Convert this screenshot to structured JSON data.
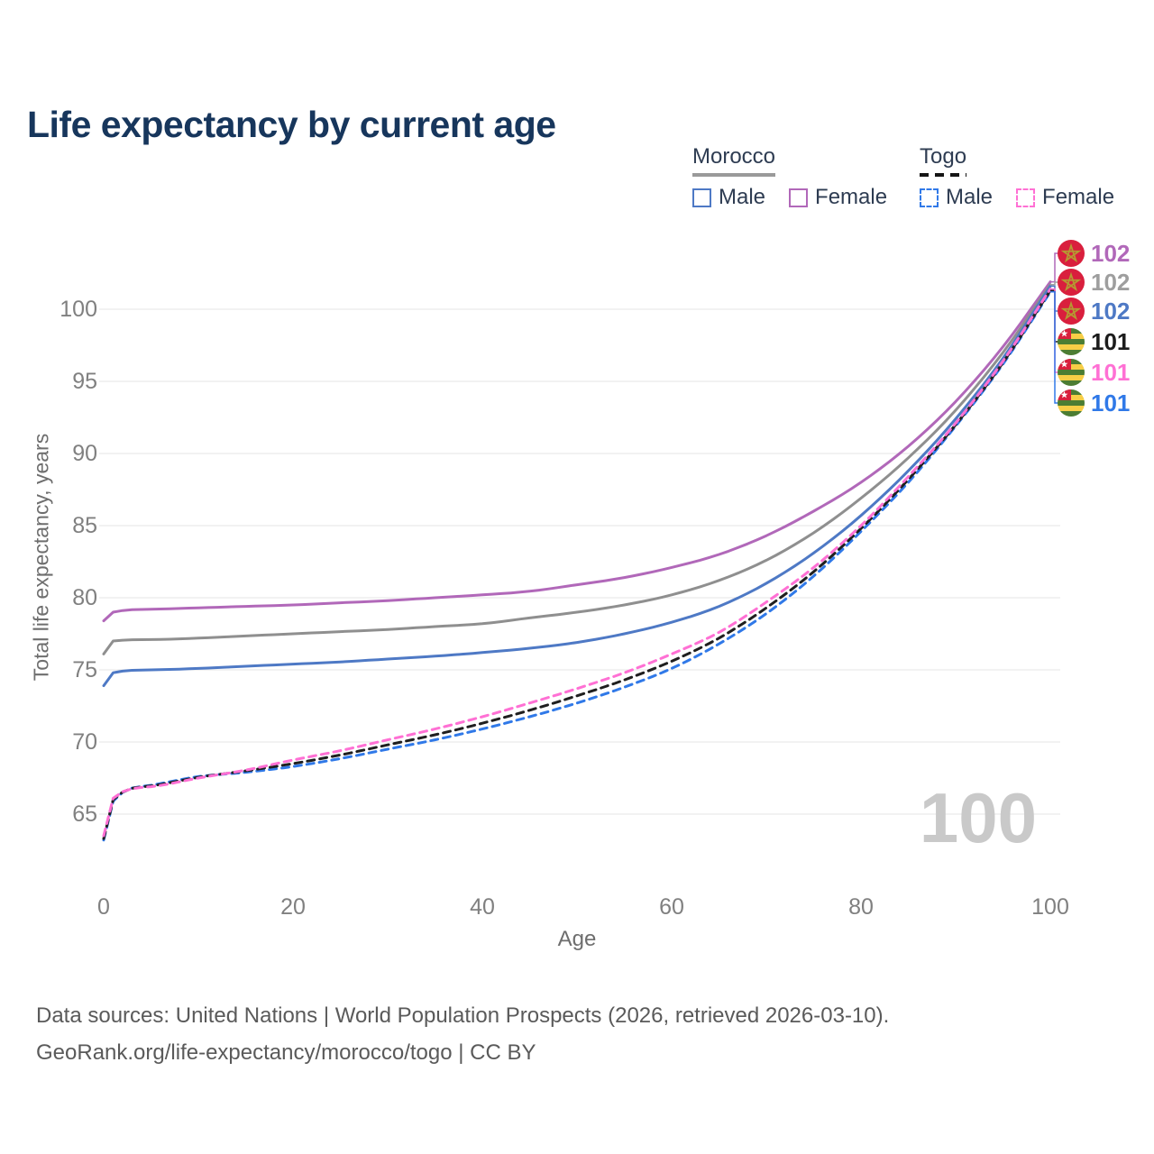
{
  "title": "Life expectancy by current age",
  "watermark": "100",
  "y_axis": {
    "label": "Total life expectancy, years",
    "ticks": [
      65,
      70,
      75,
      80,
      85,
      90,
      95,
      100
    ]
  },
  "x_axis": {
    "label": "Age",
    "ticks": [
      0,
      20,
      40,
      60,
      80,
      100
    ]
  },
  "legend": {
    "groups": [
      {
        "name": "Morocco",
        "line_style": "solid",
        "underline_color": "#9a9a9a",
        "items": [
          {
            "label": "Male",
            "color": "#4e79c5"
          },
          {
            "label": "Female",
            "color": "#b168b9"
          }
        ]
      },
      {
        "name": "Togo",
        "line_style": "dashed",
        "underline_color": "#151515",
        "items": [
          {
            "label": "Male",
            "color": "#3079e8"
          },
          {
            "label": "Female",
            "color": "#ff70d4"
          }
        ]
      }
    ]
  },
  "end_labels": [
    {
      "text": "102",
      "color": "#b168b9",
      "flag": "morocco",
      "series": "morocco_female"
    },
    {
      "text": "102",
      "color": "#9e9e9e",
      "flag": "morocco",
      "series": "morocco_both"
    },
    {
      "text": "102",
      "color": "#4e79c5",
      "flag": "morocco",
      "series": "morocco_male"
    },
    {
      "text": "101",
      "color": "#1c1c1c",
      "flag": "togo",
      "series": "togo_both"
    },
    {
      "text": "101",
      "color": "#ff70d4",
      "flag": "togo",
      "series": "togo_female"
    },
    {
      "text": "101",
      "color": "#3079e8",
      "flag": "togo",
      "series": "togo_male"
    }
  ],
  "footer": {
    "line1": "Data sources: United Nations | World Population Prospects (2026, retrieved 2026-03-10).",
    "line2": "GeoRank.org/life-expectancy/morocco/togo | CC BY"
  },
  "chart_data": {
    "type": "line",
    "title": "Life expectancy by current age",
    "xlabel": "Age",
    "ylabel": "Total life expectancy, years",
    "xlim": [
      0,
      100
    ],
    "ylim": [
      62,
      103.5
    ],
    "grid": "horizontal",
    "legend_position": "top-right",
    "x": [
      0,
      1,
      5,
      10,
      15,
      20,
      25,
      30,
      35,
      40,
      45,
      50,
      55,
      60,
      65,
      70,
      75,
      80,
      85,
      90,
      95,
      100
    ],
    "series": [
      {
        "id": "morocco_female",
        "name": "Morocco Female",
        "color": "#b168b9",
        "dash": false,
        "values": [
          78.4,
          79.0,
          79.2,
          79.3,
          79.4,
          79.5,
          79.65,
          79.8,
          80.0,
          80.2,
          80.45,
          80.9,
          81.4,
          82.1,
          83.0,
          84.3,
          86.0,
          88.0,
          90.5,
          93.6,
          97.4,
          101.9
        ]
      },
      {
        "id": "morocco_both",
        "name": "Morocco Both sexes",
        "color": "#8f8f8f",
        "dash": false,
        "values": [
          76.1,
          77.0,
          77.1,
          77.2,
          77.35,
          77.5,
          77.65,
          77.8,
          78.0,
          78.2,
          78.6,
          79.0,
          79.5,
          80.2,
          81.2,
          82.6,
          84.5,
          86.9,
          89.7,
          93.0,
          97.0,
          101.7
        ]
      },
      {
        "id": "morocco_male",
        "name": "Morocco Male",
        "color": "#4e79c5",
        "dash": false,
        "values": [
          73.9,
          74.8,
          75.0,
          75.1,
          75.25,
          75.4,
          75.55,
          75.75,
          75.95,
          76.2,
          76.5,
          76.9,
          77.5,
          78.3,
          79.4,
          81.0,
          83.1,
          85.7,
          88.8,
          92.4,
          96.6,
          101.6
        ]
      },
      {
        "id": "togo_male",
        "name": "Togo Male",
        "color": "#3079e8",
        "dash": true,
        "values": [
          63.2,
          65.9,
          67.0,
          67.6,
          67.9,
          68.3,
          68.85,
          69.5,
          70.15,
          70.9,
          71.75,
          72.7,
          73.8,
          75.1,
          76.8,
          78.9,
          81.5,
          84.6,
          88.0,
          91.9,
          96.2,
          101.2
        ]
      },
      {
        "id": "togo_both",
        "name": "Togo Both sexes",
        "color": "#1f1f1f",
        "dash": true,
        "values": [
          63.3,
          66.0,
          66.95,
          67.55,
          68.0,
          68.5,
          69.1,
          69.8,
          70.5,
          71.3,
          72.2,
          73.2,
          74.3,
          75.6,
          77.2,
          79.3,
          81.8,
          84.8,
          88.2,
          92.0,
          96.3,
          101.3
        ]
      },
      {
        "id": "togo_female",
        "name": "Togo Female",
        "color": "#ff70d4",
        "dash": true,
        "values": [
          63.5,
          66.1,
          66.9,
          67.5,
          68.05,
          68.75,
          69.4,
          70.15,
          70.9,
          71.75,
          72.7,
          73.7,
          74.8,
          76.1,
          77.6,
          79.7,
          82.1,
          85.0,
          88.4,
          92.1,
          96.4,
          101.4
        ]
      }
    ],
    "flag_colors": {
      "morocco_red": "#d91f3d",
      "morocco_star": "#b49a32",
      "togo_green": "#4c7d33",
      "togo_yellow": "#f7ce46",
      "togo_red": "#d91f3d",
      "togo_star": "#ffffff"
    }
  }
}
